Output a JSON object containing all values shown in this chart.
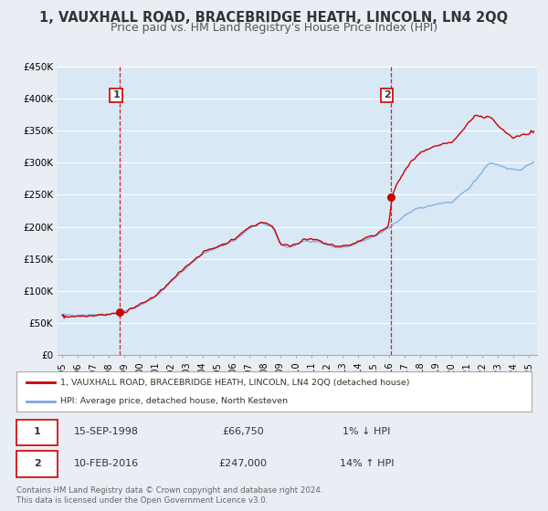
{
  "title": "1, VAUXHALL ROAD, BRACEBRIDGE HEATH, LINCOLN, LN4 2QQ",
  "subtitle": "Price paid vs. HM Land Registry's House Price Index (HPI)",
  "ylim": [
    0,
    450000
  ],
  "yticks": [
    0,
    50000,
    100000,
    150000,
    200000,
    250000,
    300000,
    350000,
    400000,
    450000
  ],
  "ytick_labels": [
    "£0",
    "£50K",
    "£100K",
    "£150K",
    "£200K",
    "£250K",
    "£300K",
    "£350K",
    "£400K",
    "£450K"
  ],
  "xlim_start": 1994.7,
  "xlim_end": 2025.5,
  "xticks": [
    1995,
    1996,
    1997,
    1998,
    1999,
    2000,
    2001,
    2002,
    2003,
    2004,
    2005,
    2006,
    2007,
    2008,
    2009,
    2010,
    2011,
    2012,
    2013,
    2014,
    2015,
    2016,
    2017,
    2018,
    2019,
    2020,
    2021,
    2022,
    2023,
    2024,
    2025
  ],
  "background_color": "#e8eef4",
  "plot_bg_color": "#d8e8f5",
  "grid_color": "#ffffff",
  "sale1_date": 1998.71,
  "sale1_price": 66750,
  "sale2_date": 2016.11,
  "sale2_price": 247000,
  "sale1_vline_color": "#cc0000",
  "sale2_vline_color": "#cc0000",
  "hpi_color": "#7aaadd",
  "price_color": "#cc0000",
  "legend_label_price": "1, VAUXHALL ROAD, BRACEBRIDGE HEATH, LINCOLN, LN4 2QQ (detached house)",
  "legend_label_hpi": "HPI: Average price, detached house, North Kesteven",
  "annotation1_num": "1",
  "annotation1_date": "15-SEP-1998",
  "annotation1_price": "£66,750",
  "annotation1_hpi": "1% ↓ HPI",
  "annotation2_num": "2",
  "annotation2_date": "10-FEB-2016",
  "annotation2_price": "£247,000",
  "annotation2_hpi": "14% ↑ HPI",
  "footer1": "Contains HM Land Registry data © Crown copyright and database right 2024.",
  "footer2": "This data is licensed under the Open Government Licence v3.0.",
  "title_fontsize": 10.5,
  "subtitle_fontsize": 9,
  "hpi_anchors_t": [
    1995.0,
    1996.0,
    1997.0,
    1998.0,
    1999.0,
    2000.0,
    2001.0,
    2002.0,
    2003.0,
    2004.0,
    2005.0,
    2006.0,
    2007.0,
    2007.8,
    2008.5,
    2009.0,
    2009.5,
    2010.0,
    2010.5,
    2011.0,
    2011.5,
    2012.0,
    2012.5,
    2013.0,
    2013.5,
    2014.0,
    2014.5,
    2015.0,
    2015.5,
    2016.0,
    2016.5,
    2017.0,
    2017.5,
    2018.0,
    2018.5,
    2019.0,
    2019.5,
    2020.0,
    2020.5,
    2021.0,
    2021.5,
    2022.0,
    2022.3,
    2022.6,
    2023.0,
    2023.5,
    2024.0,
    2024.5,
    2025.3
  ],
  "hpi_anchors_p": [
    62000,
    62500,
    63000,
    64000,
    68000,
    78000,
    92000,
    115000,
    138000,
    158000,
    168000,
    178000,
    198000,
    205000,
    200000,
    172000,
    168000,
    172000,
    178000,
    178000,
    176000,
    172000,
    168000,
    168000,
    170000,
    175000,
    180000,
    185000,
    192000,
    200000,
    208000,
    218000,
    225000,
    230000,
    232000,
    235000,
    238000,
    238000,
    248000,
    258000,
    272000,
    288000,
    298000,
    300000,
    296000,
    292000,
    288000,
    290000,
    302000
  ],
  "price_anchors_t": [
    1995.0,
    1996.0,
    1997.0,
    1998.0,
    1998.71,
    1999.0,
    2000.0,
    2001.0,
    2002.0,
    2003.0,
    2004.0,
    2005.0,
    2006.0,
    2007.0,
    2007.8,
    2008.5,
    2009.0,
    2009.5,
    2010.0,
    2010.5,
    2011.0,
    2011.5,
    2012.0,
    2012.5,
    2013.0,
    2013.5,
    2014.0,
    2014.5,
    2015.0,
    2015.5,
    2016.0,
    2016.11,
    2016.5,
    2017.0,
    2017.5,
    2018.0,
    2018.5,
    2019.0,
    2019.5,
    2020.0,
    2020.5,
    2021.0,
    2021.5,
    2022.0,
    2022.3,
    2022.6,
    2023.0,
    2023.3,
    2023.6,
    2024.0,
    2024.5,
    2025.3
  ],
  "price_anchors_p": [
    60000,
    61000,
    62500,
    63500,
    66750,
    68000,
    79000,
    93000,
    116000,
    140000,
    160000,
    170000,
    180000,
    200000,
    207000,
    202000,
    173000,
    170000,
    174000,
    180000,
    180000,
    178000,
    173000,
    170000,
    170000,
    172000,
    177000,
    182000,
    187000,
    194000,
    202000,
    247000,
    268000,
    288000,
    305000,
    315000,
    320000,
    325000,
    330000,
    330000,
    345000,
    360000,
    375000,
    370000,
    373000,
    368000,
    355000,
    350000,
    345000,
    340000,
    343000,
    348000
  ]
}
